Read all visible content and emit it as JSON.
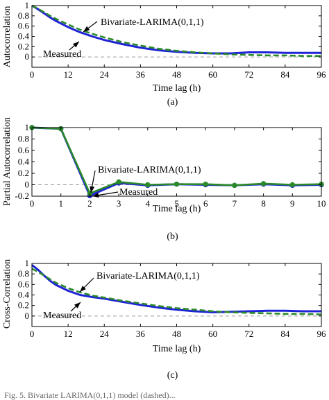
{
  "colors": {
    "measured": "#1f23d6",
    "model": "#2a8a2a",
    "zero_line": "#9a9a9a",
    "axes": "#000000"
  },
  "bottom_text": "Fig. 5.    Bivariate LARIMA(0,1,1) model (dashed)...",
  "chart_data": [
    {
      "type": "line",
      "caption": "(a)",
      "xlabel": "Time lag (h)",
      "ylabel": "Autocorrelation",
      "xlim": [
        0,
        96
      ],
      "ylim": [
        -0.2,
        1
      ],
      "xticks": [
        0,
        12,
        24,
        36,
        48,
        60,
        72,
        84,
        96
      ],
      "xtick_labels": [
        "0",
        "12",
        "24",
        "36",
        "48",
        "60",
        "72",
        "84",
        "96"
      ],
      "yticks": [
        0,
        0.2,
        0.4,
        0.6,
        0.8,
        1
      ],
      "ytick_labels": [
        "0",
        "0.2",
        "0.4",
        "0.6",
        "0.8",
        "1"
      ],
      "zero_line": true,
      "annotations": [
        {
          "text": "Bivariate-LARIMA(0,1,1)",
          "series": "model"
        },
        {
          "text": "Measured",
          "series": "measured"
        }
      ],
      "x": [
        0,
        2,
        4,
        6,
        8,
        12,
        16,
        20,
        24,
        30,
        36,
        42,
        48,
        54,
        60,
        66,
        72,
        78,
        84,
        90,
        96
      ],
      "series": [
        {
          "key": "measured",
          "style": "solid",
          "values": [
            1.0,
            0.93,
            0.85,
            0.77,
            0.7,
            0.58,
            0.48,
            0.4,
            0.33,
            0.25,
            0.18,
            0.13,
            0.1,
            0.08,
            0.07,
            0.07,
            0.09,
            0.09,
            0.08,
            0.08,
            0.08
          ]
        },
        {
          "key": "model",
          "style": "dashed",
          "values": [
            1.0,
            0.94,
            0.87,
            0.8,
            0.74,
            0.63,
            0.53,
            0.45,
            0.38,
            0.29,
            0.22,
            0.16,
            0.12,
            0.09,
            0.07,
            0.05,
            0.04,
            0.03,
            0.03,
            0.02,
            0.02
          ]
        }
      ]
    },
    {
      "type": "line",
      "caption": "(b)",
      "xlabel": "Time lag (h)",
      "ylabel": "Partial Autocorrelation",
      "xlim": [
        0,
        10
      ],
      "ylim": [
        -0.2,
        1
      ],
      "xticks": [
        0,
        1,
        2,
        3,
        4,
        5,
        6,
        7,
        8,
        9,
        10
      ],
      "xtick_labels": [
        "0",
        "1",
        "2",
        "3",
        "4",
        "5",
        "6",
        "7",
        "8",
        "9",
        "10"
      ],
      "yticks": [
        -0.2,
        0,
        0.2,
        0.4,
        0.6,
        0.8,
        1
      ],
      "ytick_labels": [
        "-0.2",
        "0",
        "0.2",
        "0.4",
        "0.6",
        "0.8",
        "1"
      ],
      "zero_line": true,
      "markers": true,
      "annotations": [
        {
          "text": "Bivariate-LARIMA(0,1,1)",
          "series": "model"
        },
        {
          "text": "Measured",
          "series": "measured"
        }
      ],
      "x": [
        0,
        1,
        2,
        3,
        4,
        5,
        6,
        7,
        8,
        9,
        10
      ],
      "series": [
        {
          "key": "measured",
          "style": "solid",
          "values": [
            1.0,
            0.98,
            -0.19,
            0.03,
            -0.01,
            0.01,
            0.0,
            -0.01,
            0.01,
            -0.01,
            0.0
          ]
        },
        {
          "key": "model",
          "style": "solid",
          "values": [
            1.0,
            0.98,
            -0.15,
            0.05,
            0.0,
            0.01,
            0.01,
            -0.01,
            0.02,
            0.0,
            0.01
          ]
        }
      ]
    },
    {
      "type": "line",
      "caption": "(c)",
      "xlabel": "Time lag (h)",
      "ylabel": "Cross-Correlation",
      "xlim": [
        0,
        96
      ],
      "ylim": [
        -0.2,
        1
      ],
      "xticks": [
        0,
        12,
        24,
        36,
        48,
        60,
        72,
        84,
        96
      ],
      "xtick_labels": [
        "0",
        "12",
        "24",
        "36",
        "48",
        "60",
        "72",
        "84",
        "96"
      ],
      "yticks": [
        0,
        0.2,
        0.4,
        0.6,
        0.8,
        1
      ],
      "ytick_labels": [
        "0",
        "0.2",
        "0.4",
        "0.6",
        "0.8",
        "1"
      ],
      "zero_line": true,
      "annotations": [
        {
          "text": "Bivariate-LARIMA(0,1,1)",
          "series": "model"
        },
        {
          "text": "Measured",
          "series": "measured"
        }
      ],
      "x": [
        0,
        2,
        4,
        6,
        8,
        12,
        16,
        20,
        24,
        30,
        36,
        42,
        48,
        54,
        60,
        66,
        72,
        78,
        84,
        90,
        96
      ],
      "series": [
        {
          "key": "measured",
          "style": "solid",
          "values": [
            0.97,
            0.88,
            0.77,
            0.67,
            0.59,
            0.48,
            0.4,
            0.36,
            0.33,
            0.27,
            0.21,
            0.16,
            0.12,
            0.09,
            0.07,
            0.08,
            0.09,
            0.1,
            0.1,
            0.09,
            0.09
          ]
        },
        {
          "key": "model",
          "style": "dashed",
          "values": [
            0.9,
            0.84,
            0.77,
            0.7,
            0.63,
            0.53,
            0.45,
            0.39,
            0.35,
            0.29,
            0.24,
            0.19,
            0.15,
            0.12,
            0.09,
            0.07,
            0.06,
            0.05,
            0.04,
            0.04,
            0.03
          ]
        }
      ]
    }
  ]
}
